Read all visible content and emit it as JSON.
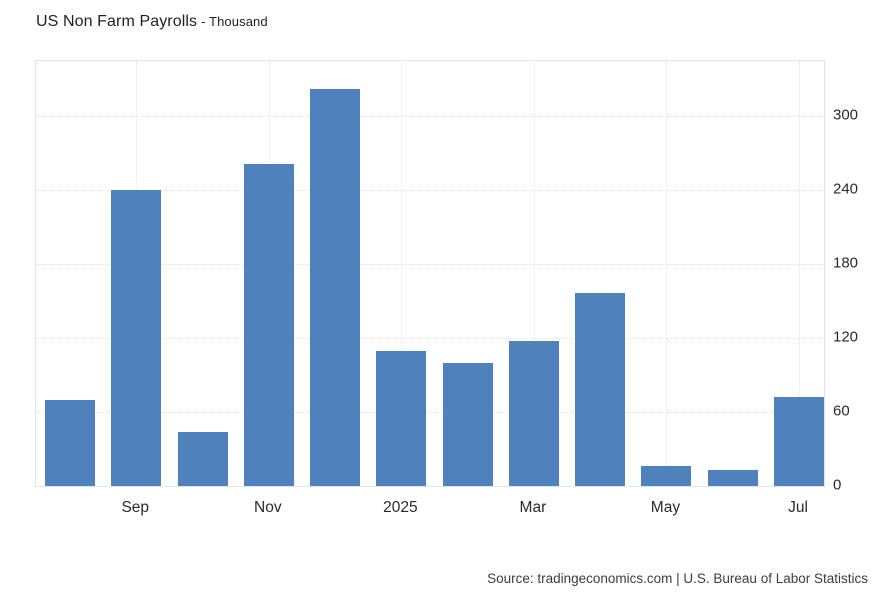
{
  "header": {
    "title": "US Non Farm Payrolls",
    "subtitle": "- Thousand"
  },
  "footer": {
    "source": "Source: tradingeconomics.com | U.S. Bureau of Labor Statistics"
  },
  "chart_data": {
    "type": "bar",
    "title": "US Non Farm Payrolls",
    "units": "Thousand",
    "values": [
      70,
      240,
      44,
      261,
      322,
      110,
      100,
      118,
      157,
      16,
      13,
      72
    ],
    "x_tick_labels": [
      "Sep",
      "Nov",
      "2025",
      "Mar",
      "May",
      "Jul"
    ],
    "x_tick_bar_indices": [
      1,
      3,
      5,
      7,
      9,
      11
    ],
    "y_ticks": [
      0,
      60,
      120,
      180,
      240,
      300
    ],
    "ylim": [
      0,
      345
    ],
    "y_axis_position": "right",
    "grid": "dotted",
    "bar_color": "#4f81bd",
    "background_color": "#ffffff"
  }
}
